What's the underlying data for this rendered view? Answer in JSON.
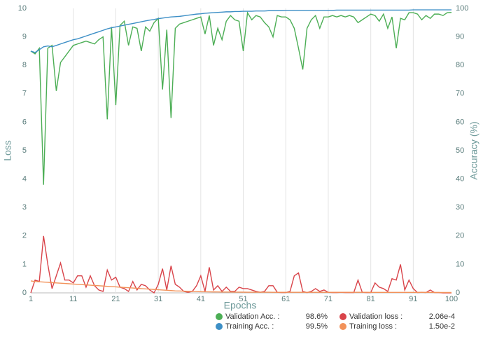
{
  "chart_data": {
    "type": "line",
    "x_label": "Epochs",
    "y_label": "Loss",
    "y2_label": "Accuracy (%)",
    "x": [
      1,
      2,
      3,
      4,
      5,
      6,
      7,
      8,
      9,
      10,
      11,
      12,
      13,
      14,
      15,
      16,
      17,
      18,
      19,
      20,
      21,
      22,
      23,
      24,
      25,
      26,
      27,
      28,
      29,
      30,
      31,
      32,
      33,
      34,
      35,
      36,
      37,
      38,
      39,
      40,
      41,
      42,
      43,
      44,
      45,
      46,
      47,
      48,
      49,
      50,
      51,
      52,
      53,
      54,
      55,
      56,
      57,
      58,
      59,
      60,
      61,
      62,
      63,
      64,
      65,
      66,
      67,
      68,
      69,
      70,
      71,
      72,
      73,
      74,
      75,
      76,
      77,
      78,
      79,
      80,
      81,
      82,
      83,
      84,
      85,
      86,
      87,
      88,
      89,
      90,
      91,
      92,
      93,
      94,
      95,
      96,
      97,
      98,
      99,
      100
    ],
    "xlim": [
      1,
      100
    ],
    "xticks": [
      1,
      11,
      21,
      31,
      41,
      51,
      61,
      71,
      81,
      91,
      100
    ],
    "ylim": [
      0,
      10
    ],
    "yticks": [
      0,
      1,
      2,
      3,
      4,
      5,
      6,
      7,
      8,
      9,
      10
    ],
    "y2lim": [
      0,
      100
    ],
    "y2ticks": [
      0,
      10,
      20,
      30,
      40,
      50,
      60,
      70,
      80,
      90,
      100
    ],
    "grid": true,
    "series": [
      {
        "name": "Validation Acc. :",
        "summary": "98.6%",
        "color": "#4cae55",
        "axis": "y2",
        "values": [
          85,
          84,
          86,
          38,
          86,
          87,
          71,
          81,
          83,
          85,
          87,
          87.5,
          88,
          88.5,
          88,
          87.5,
          89,
          90,
          61,
          93.5,
          66,
          94,
          95.5,
          87,
          93.5,
          93,
          85,
          93.5,
          92,
          95,
          96.5,
          71.5,
          92.5,
          61.5,
          93,
          94.5,
          95,
          95.5,
          96,
          96.5,
          97,
          91,
          97.5,
          87,
          93,
          89,
          95.5,
          97.5,
          96,
          95.5,
          85,
          98.5,
          96,
          97.5,
          97,
          95,
          93.5,
          90,
          97.5,
          97,
          97,
          96,
          93,
          86,
          78.5,
          93,
          96,
          97.5,
          93,
          97,
          97,
          97.5,
          97,
          97.5,
          97,
          97.5,
          97,
          95,
          96,
          97,
          98,
          97.5,
          95.5,
          98,
          93,
          97,
          86,
          96.5,
          96,
          98.5,
          98.5,
          98,
          96,
          97.5,
          96.5,
          98,
          98,
          97.5,
          98.5,
          98.6
        ]
      },
      {
        "name": "Training Acc. :",
        "summary": "99.5%",
        "color": "#3d8fc6",
        "axis": "y2",
        "values": [
          85,
          84.5,
          85.5,
          86.5,
          86.8,
          86.5,
          87,
          87.5,
          88,
          88.5,
          89,
          89.3,
          89.8,
          90.3,
          90.8,
          91.3,
          91.8,
          92.3,
          92.8,
          93.2,
          93.5,
          93.8,
          94.1,
          94.4,
          94.7,
          95,
          95.3,
          95.6,
          95.9,
          96.1,
          96.4,
          96.6,
          96.8,
          97,
          97.1,
          97.2,
          97.4,
          97.6,
          97.8,
          98,
          98.1,
          98.3,
          98.4,
          98.5,
          98.6,
          98.7,
          98.8,
          98.8,
          98.9,
          98.9,
          99,
          99,
          99,
          99.1,
          99.1,
          99.1,
          99.2,
          99.2,
          99.2,
          99.2,
          99.3,
          99.3,
          99.3,
          99.3,
          99.3,
          99.3,
          99.3,
          99.3,
          99.3,
          99.3,
          99.3,
          99.3,
          99.4,
          99.4,
          99.4,
          99.4,
          99.4,
          99.4,
          99.4,
          99.4,
          99.4,
          99.4,
          99.4,
          99.4,
          99.4,
          99.4,
          99.4,
          99.4,
          99.4,
          99.4,
          99.5,
          99.5,
          99.5,
          99.5,
          99.5,
          99.5,
          99.5,
          99.5,
          99.5,
          99.5
        ]
      },
      {
        "name": "Validation loss :",
        "summary": "2.06e-4",
        "color": "#d9444a",
        "values": [
          0,
          0.45,
          0.4,
          2.0,
          1.0,
          0.15,
          0.6,
          1.05,
          0.45,
          0.45,
          0.35,
          0.6,
          0.6,
          0.2,
          0.6,
          0.25,
          0.1,
          0.05,
          0.8,
          0.45,
          0.55,
          0.2,
          0.15,
          0.05,
          0.4,
          0.1,
          0.3,
          0.25,
          0.1,
          0,
          0.3,
          0.85,
          0.1,
          0.95,
          0.3,
          0.2,
          0.05,
          0.02,
          0.05,
          0.25,
          0.6,
          0.05,
          0.9,
          0.1,
          0.25,
          0.05,
          0.2,
          0.05,
          0.05,
          0.2,
          0.15,
          0.15,
          0.1,
          0.05,
          0.02,
          0.05,
          0.25,
          0.25,
          0.02,
          0.01,
          0.01,
          0.05,
          0.6,
          0.7,
          0.05,
          0.01,
          0.05,
          0.15,
          0.05,
          0.1,
          0.02,
          0.01,
          0.01,
          0.02,
          0.01,
          0.01,
          0.01,
          0.45,
          0.02,
          0.01,
          0.01,
          0.35,
          0.2,
          0.15,
          0.05,
          0.5,
          0.45,
          1.0,
          0.1,
          0.45,
          0.15,
          0.01,
          0.02,
          0.01,
          0.1,
          0.01,
          0.01,
          0,
          0,
          0.0002
        ]
      },
      {
        "name": "Training loss :",
        "summary": "1.50e-2",
        "color": "#f2925a",
        "values": [
          0.42,
          0.4,
          0.39,
          0.38,
          0.37,
          0.36,
          0.35,
          0.34,
          0.33,
          0.32,
          0.31,
          0.3,
          0.29,
          0.28,
          0.27,
          0.26,
          0.25,
          0.24,
          0.23,
          0.22,
          0.21,
          0.2,
          0.19,
          0.18,
          0.17,
          0.16,
          0.15,
          0.14,
          0.13,
          0.12,
          0.11,
          0.1,
          0.09,
          0.08,
          0.07,
          0.065,
          0.06,
          0.055,
          0.05,
          0.045,
          0.04,
          0.038,
          0.036,
          0.034,
          0.032,
          0.03,
          0.029,
          0.028,
          0.027,
          0.026,
          0.025,
          0.024,
          0.024,
          0.023,
          0.023,
          0.022,
          0.022,
          0.021,
          0.021,
          0.02,
          0.02,
          0.02,
          0.02,
          0.02,
          0.02,
          0.02,
          0.02,
          0.02,
          0.02,
          0.02,
          0.019,
          0.019,
          0.019,
          0.019,
          0.019,
          0.019,
          0.019,
          0.019,
          0.019,
          0.019,
          0.018,
          0.018,
          0.018,
          0.018,
          0.018,
          0.017,
          0.017,
          0.017,
          0.017,
          0.017,
          0.016,
          0.016,
          0.016,
          0.016,
          0.016,
          0.015,
          0.015,
          0.015,
          0.015,
          0.015
        ]
      }
    ]
  }
}
